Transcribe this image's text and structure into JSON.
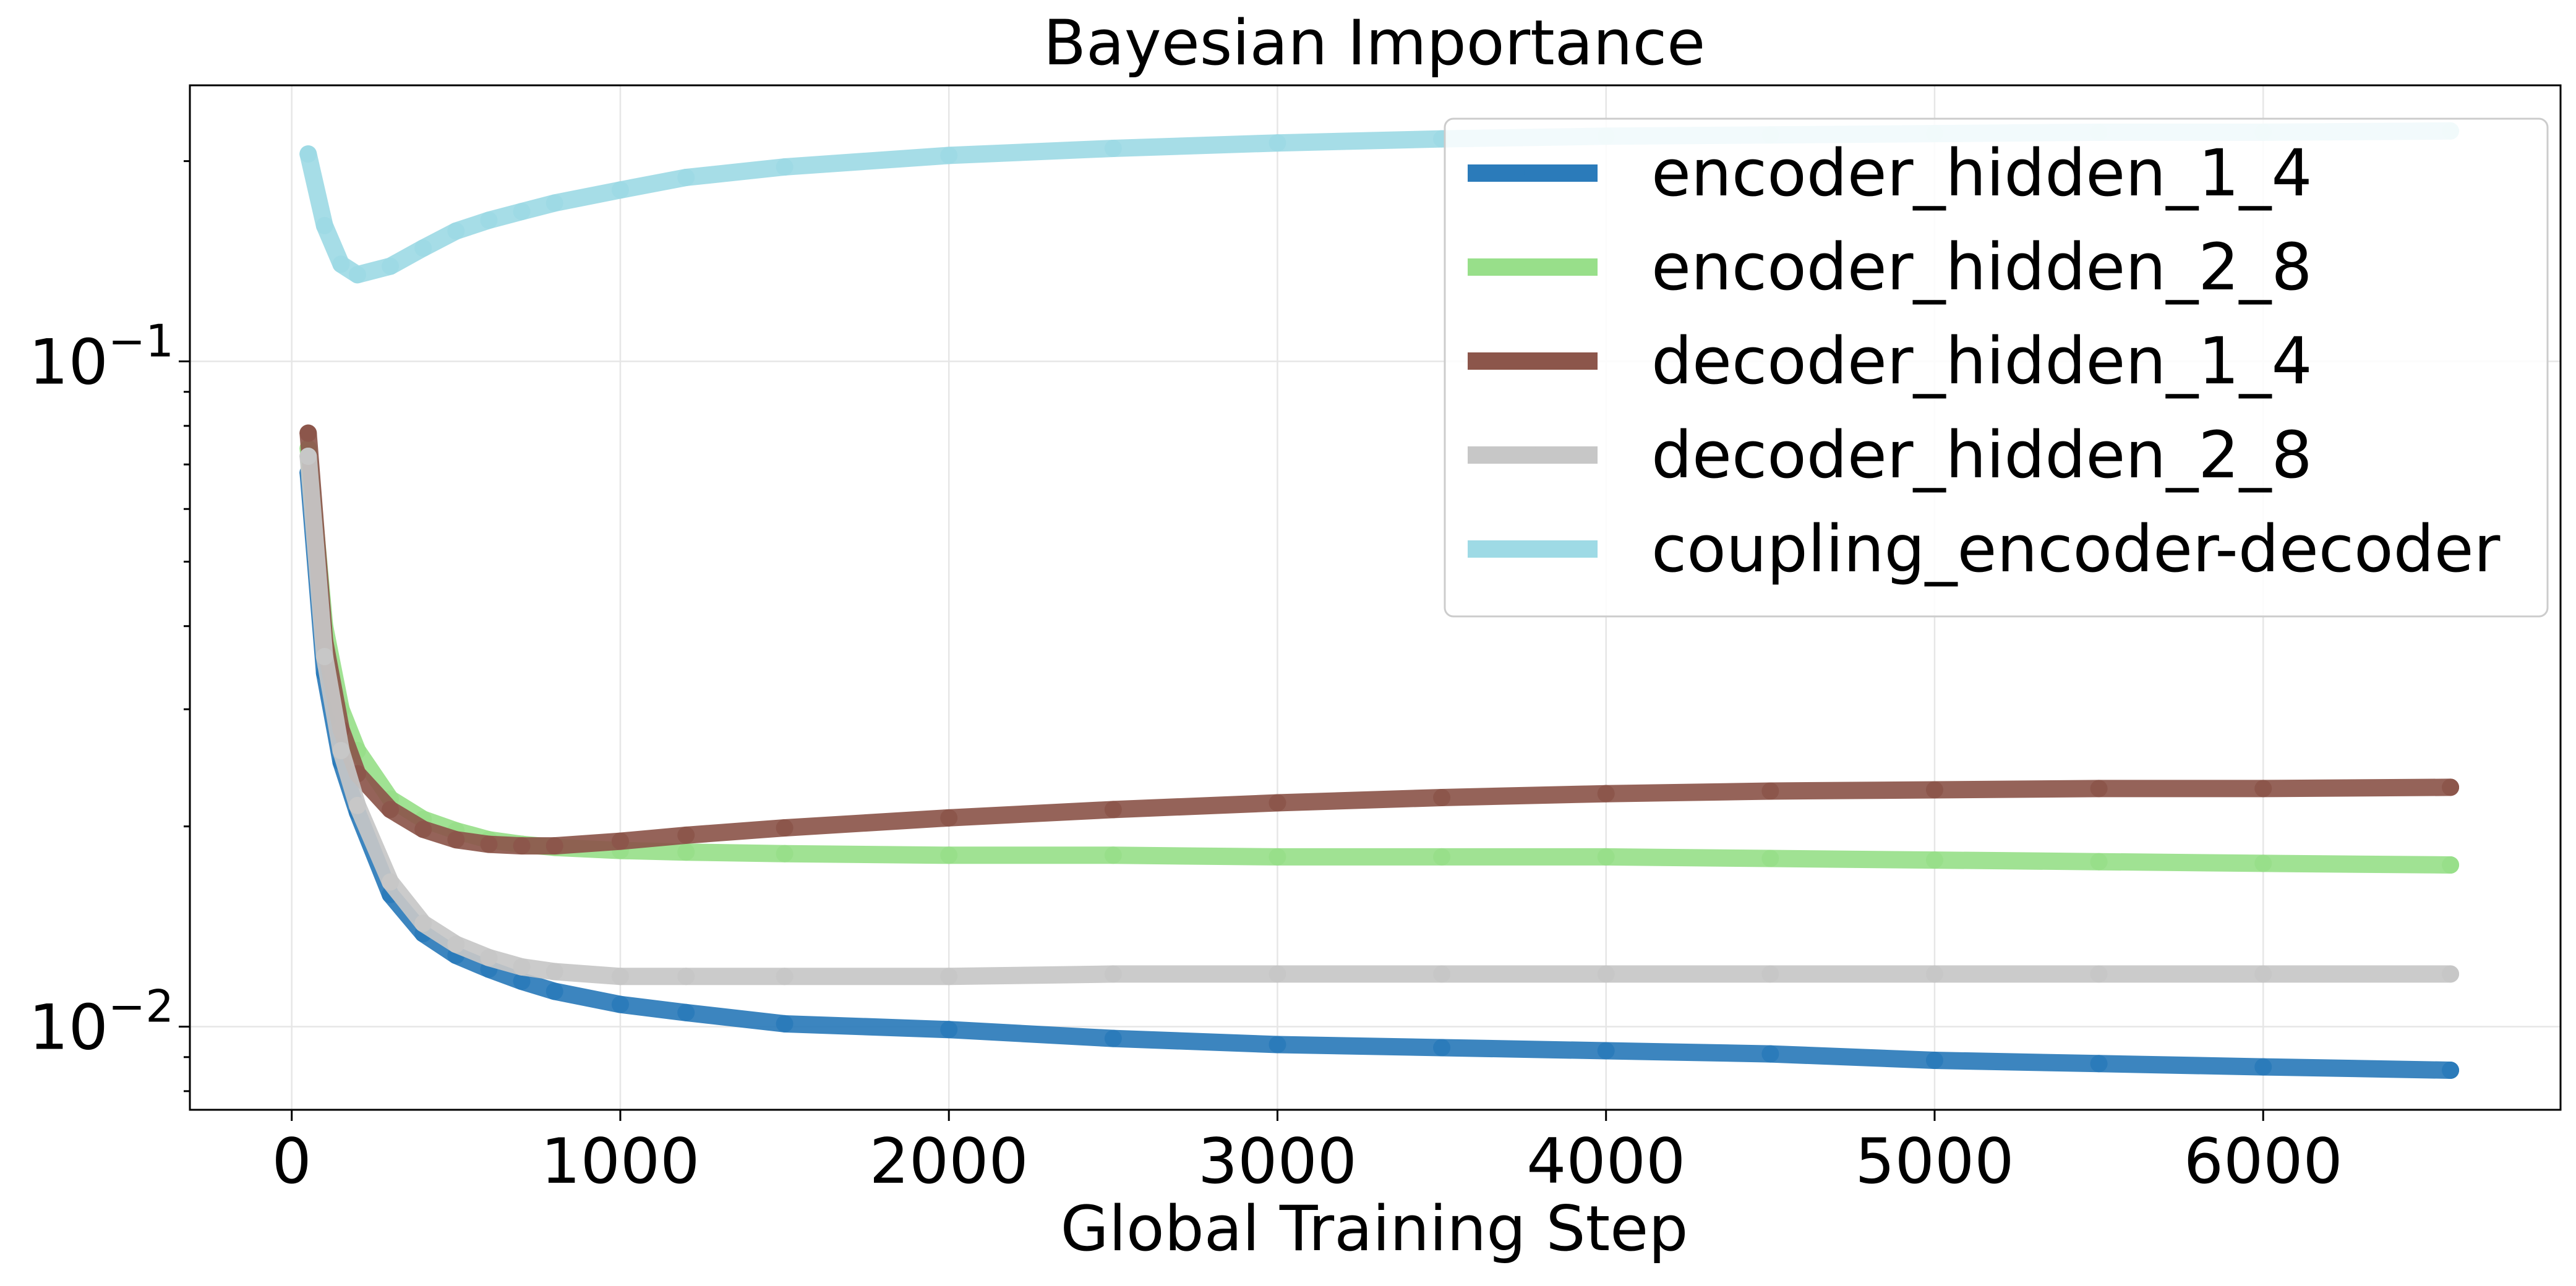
{
  "chart_data": {
    "type": "line",
    "title": "Bayesian Importance",
    "xlabel": "Global Training Step",
    "ylabel": "",
    "xlim": [
      -310,
      6905
    ],
    "ylim": [
      0.0075,
      0.26
    ],
    "yscale": "log",
    "grid": true,
    "legend_position": "upper right",
    "x_ticks": [
      0,
      1000,
      2000,
      3000,
      4000,
      5000,
      6000
    ],
    "y_major_ticks": [
      0.01,
      0.1
    ],
    "y_major_tick_labels": [
      {
        "base": "10",
        "exp": "−2"
      },
      {
        "base": "10",
        "exp": "−1"
      }
    ],
    "y_minor_ticks": [
      0.008,
      0.009,
      0.02,
      0.03,
      0.04,
      0.05,
      0.06,
      0.07,
      0.08,
      0.09,
      0.2
    ],
    "x": [
      50,
      100,
      150,
      200,
      300,
      400,
      500,
      600,
      700,
      800,
      1000,
      1200,
      1500,
      2000,
      2500,
      3000,
      3500,
      4000,
      4500,
      5000,
      5500,
      6000,
      6570
    ],
    "series": [
      {
        "name": "encoder_hidden_1_4",
        "color": "#2b7bba",
        "values": [
          0.068,
          0.034,
          0.025,
          0.021,
          0.0158,
          0.0138,
          0.0128,
          0.0122,
          0.0117,
          0.0113,
          0.0108,
          0.0105,
          0.0101,
          0.0099,
          0.0096,
          0.0094,
          0.0093,
          0.0092,
          0.0091,
          0.0089,
          0.0088,
          0.0087,
          0.0086
        ]
      },
      {
        "name": "encoder_hidden_2_8",
        "color": "#98df8a",
        "values": [
          0.074,
          0.04,
          0.03,
          0.026,
          0.022,
          0.0205,
          0.0197,
          0.0191,
          0.0188,
          0.0186,
          0.0184,
          0.0183,
          0.0182,
          0.0181,
          0.0181,
          0.018,
          0.018,
          0.018,
          0.0179,
          0.0178,
          0.0177,
          0.0176,
          0.0175
        ]
      },
      {
        "name": "decoder_hidden_1_4",
        "color": "#8c564b",
        "values": [
          0.078,
          0.038,
          0.028,
          0.024,
          0.0212,
          0.0198,
          0.0191,
          0.0188,
          0.0187,
          0.0187,
          0.019,
          0.0194,
          0.0199,
          0.0206,
          0.0212,
          0.0217,
          0.0221,
          0.0224,
          0.0226,
          0.0227,
          0.0228,
          0.0228,
          0.0229
        ]
      },
      {
        "name": "decoder_hidden_2_8",
        "color": "#c7c7c7",
        "values": [
          0.072,
          0.036,
          0.026,
          0.0215,
          0.0165,
          0.0143,
          0.0133,
          0.0127,
          0.0123,
          0.0121,
          0.0119,
          0.0119,
          0.0119,
          0.0119,
          0.012,
          0.012,
          0.012,
          0.012,
          0.012,
          0.012,
          0.012,
          0.012,
          0.012
        ]
      },
      {
        "name": "coupling_encoder-decoder",
        "color": "#9edae5",
        "values": [
          0.205,
          0.16,
          0.14,
          0.135,
          0.139,
          0.148,
          0.157,
          0.163,
          0.168,
          0.173,
          0.181,
          0.189,
          0.196,
          0.204,
          0.209,
          0.213,
          0.216,
          0.218,
          0.219,
          0.22,
          0.221,
          0.221,
          0.222
        ]
      }
    ]
  }
}
